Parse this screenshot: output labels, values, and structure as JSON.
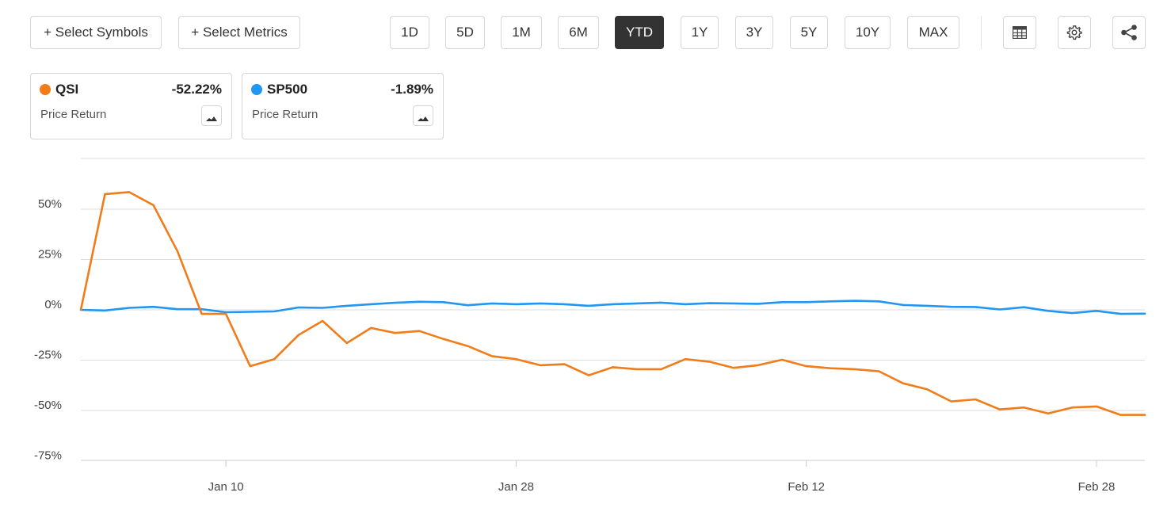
{
  "toolbar": {
    "select_symbols": "+ Select Symbols",
    "select_metrics": "+ Select Metrics",
    "ranges": [
      "1D",
      "5D",
      "1M",
      "6M",
      "YTD",
      "1Y",
      "3Y",
      "5Y",
      "10Y",
      "MAX"
    ],
    "selected_range": "YTD",
    "icons": [
      "table-icon",
      "gear-icon",
      "share-icon"
    ]
  },
  "legend_cards": [
    {
      "symbol": "QSI",
      "change": "-52.22%",
      "metric": "Price Return",
      "color": "#f07c1a"
    },
    {
      "symbol": "SP500",
      "change": "-1.89%",
      "metric": "Price Return",
      "color": "#2196f3"
    }
  ],
  "chart_data": {
    "type": "line",
    "title": "",
    "xlabel": "",
    "ylabel": "",
    "x_tick_labels": [
      "Jan 10",
      "Jan 28",
      "Feb 12",
      "Feb 28"
    ],
    "x_tick_trading_index": [
      6,
      18,
      30,
      42
    ],
    "y_tick_labels": [
      "50%",
      "25%",
      "0%",
      "-25%",
      "-50%",
      "-75%"
    ],
    "y_ticks": [
      50,
      25,
      0,
      -25,
      -50,
      -75
    ],
    "ylim": [
      -75,
      75
    ],
    "grid": true,
    "series": [
      {
        "name": "QSI",
        "color": "#f07c1a",
        "values": [
          0,
          57.5,
          58.5,
          52,
          29,
          -2,
          -2,
          -28,
          -24.5,
          -12.5,
          -5.5,
          -16.5,
          -9,
          -11.5,
          -10.5,
          -14.5,
          -18,
          -23,
          -24.5,
          -27.5,
          -27,
          -32.5,
          -28.5,
          -29.5,
          -29.5,
          -24.5,
          -25.8,
          -28.8,
          -27.5,
          -24.8,
          -28,
          -29,
          -29.5,
          -30.5,
          -36.5,
          -39.5,
          -45.5,
          -44.5,
          -49.5,
          -48.5,
          -51.5,
          -48.5,
          -48,
          -52.2,
          -52.2
        ]
      },
      {
        "name": "SP500",
        "color": "#2196f3",
        "values": [
          0,
          -0.3,
          1,
          1.5,
          0.3,
          0.3,
          -1.2,
          -1,
          -0.8,
          1.2,
          1,
          2,
          2.8,
          3.5,
          4,
          3.8,
          2.3,
          3.2,
          2.8,
          3.2,
          2.8,
          2,
          2.8,
          3.2,
          3.6,
          2.8,
          3.3,
          3.2,
          3,
          3.8,
          3.8,
          4.2,
          4.5,
          4.2,
          2.4,
          2,
          1.5,
          1.4,
          0.2,
          1.3,
          -0.5,
          -1.6,
          -0.5,
          -2,
          -1.9
        ]
      }
    ]
  }
}
